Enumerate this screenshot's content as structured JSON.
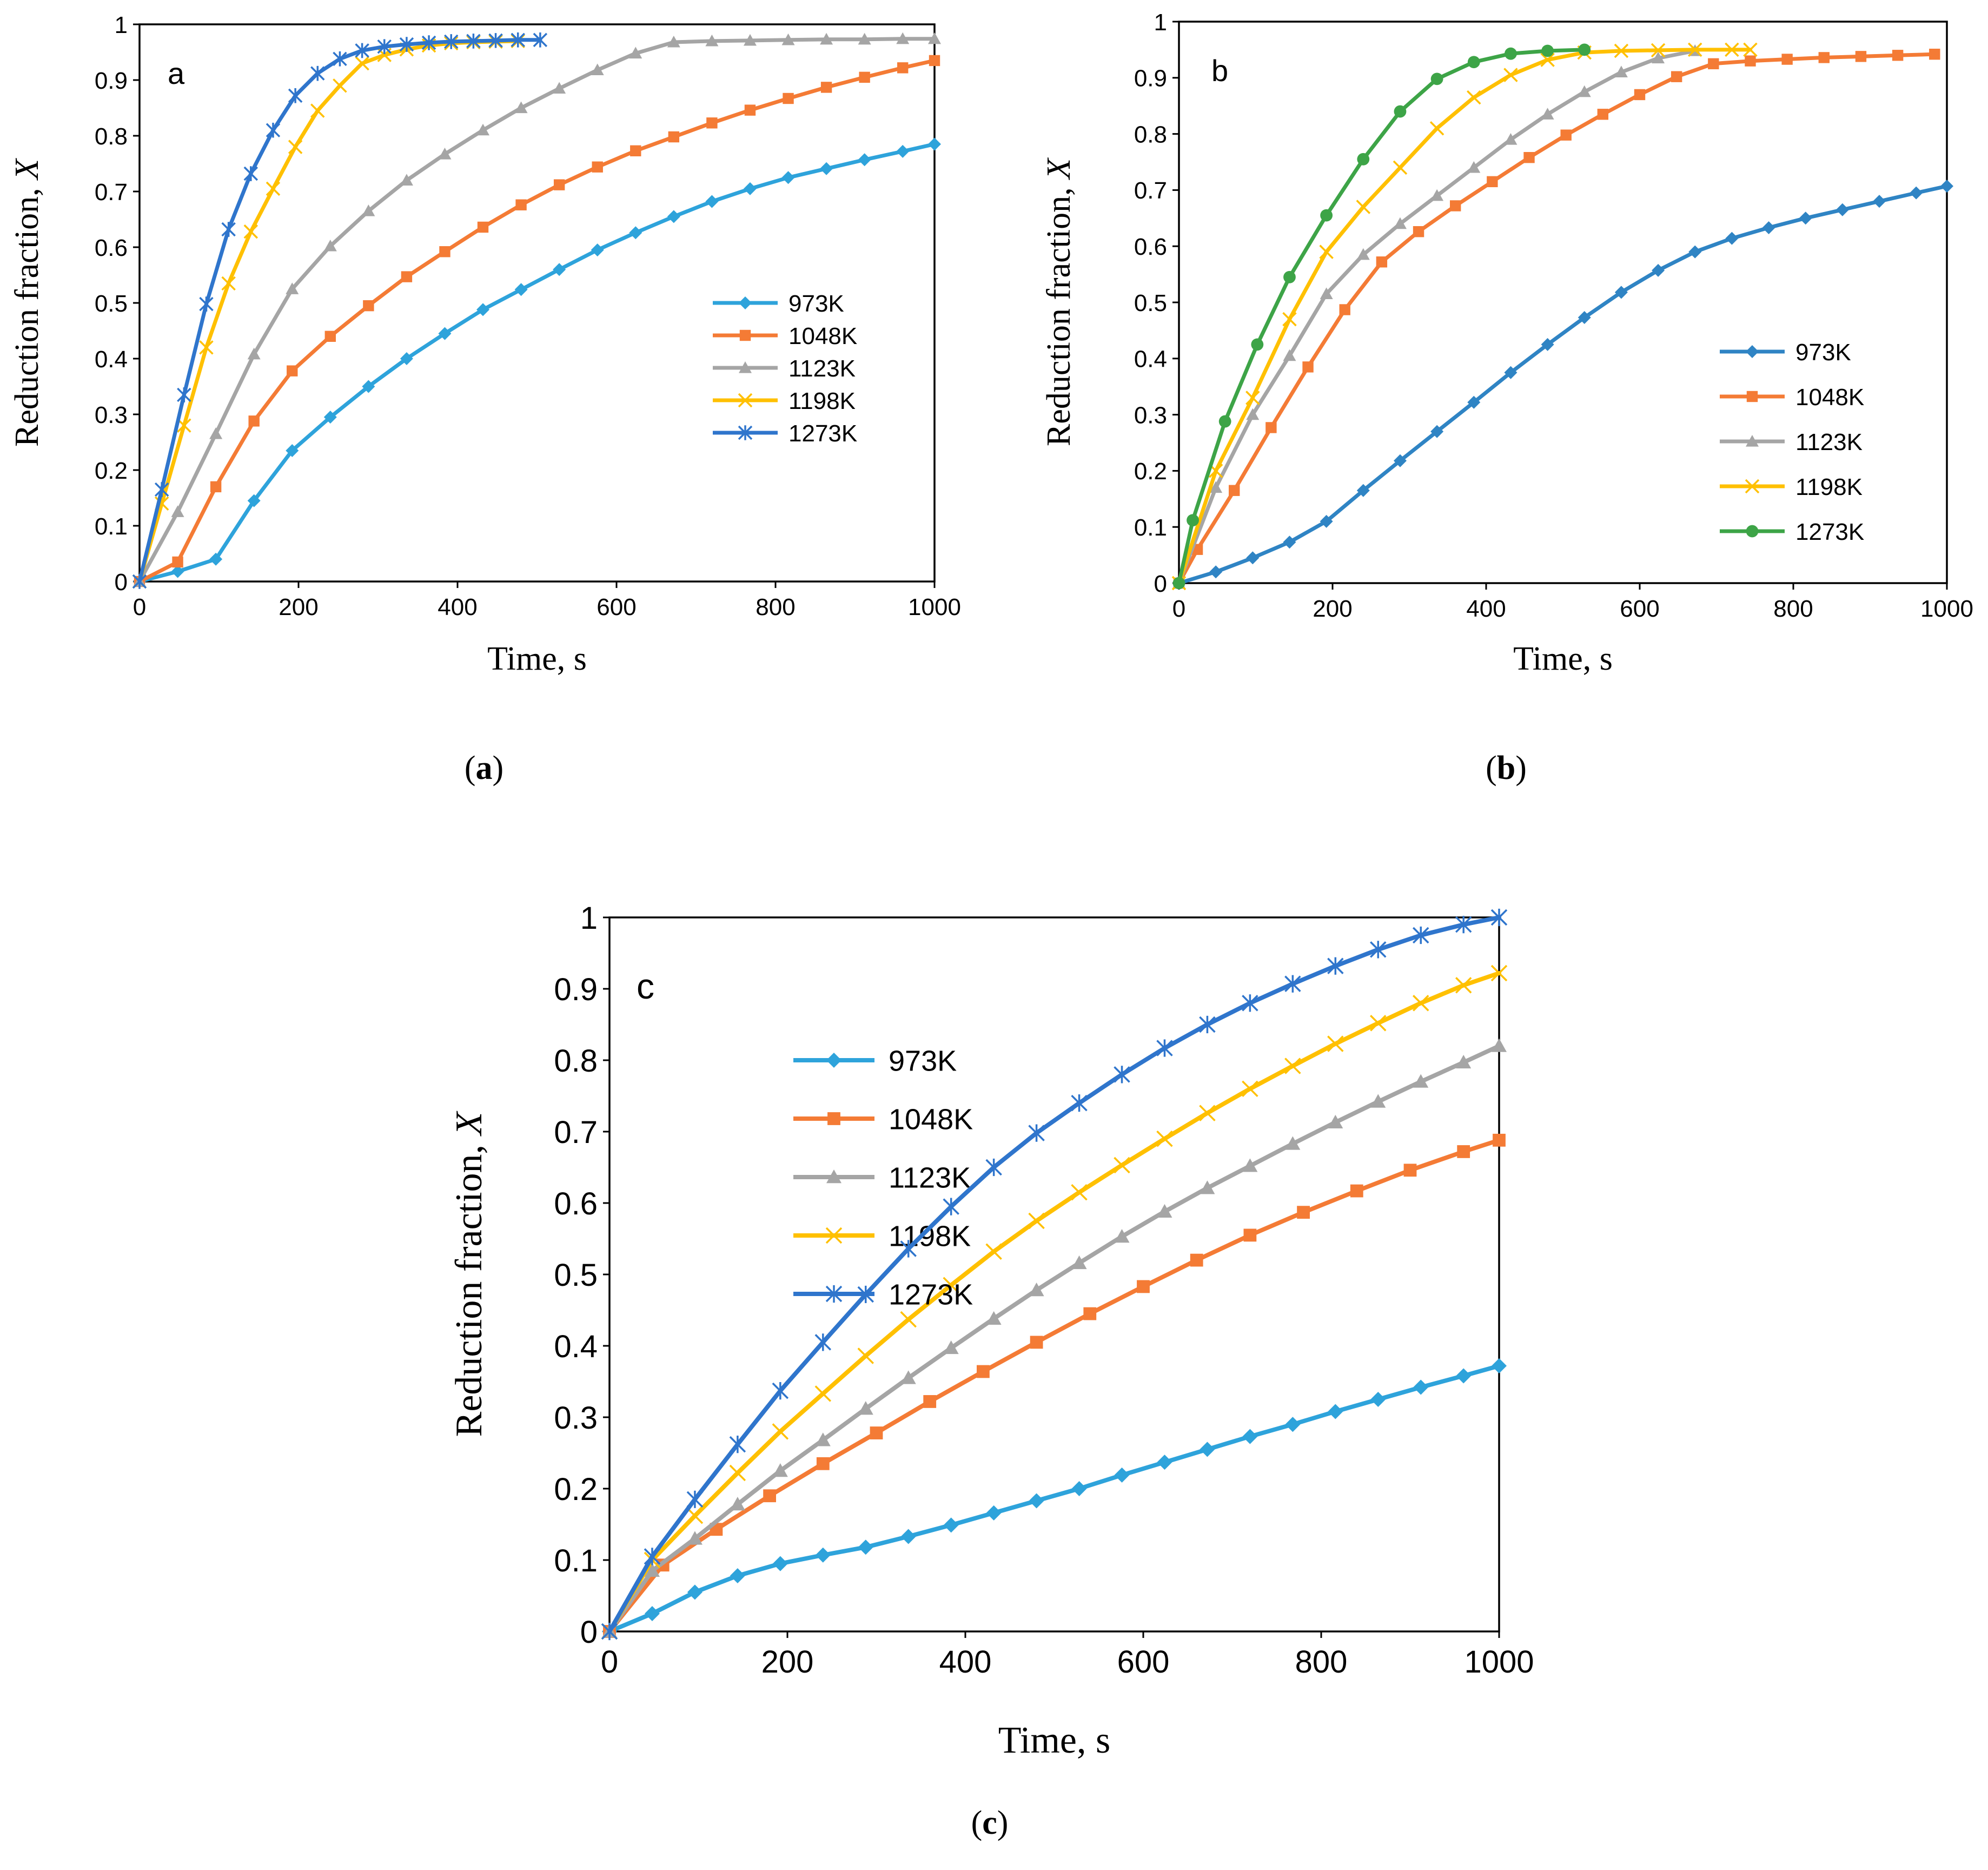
{
  "captions": [
    {
      "open": "(",
      "letter": "a",
      "close": ")"
    },
    {
      "open": "(",
      "letter": "b",
      "close": ")"
    },
    {
      "open": "(",
      "letter": "c",
      "close": ")"
    }
  ],
  "chart_data": [
    {
      "type": "line",
      "panel_label": "a",
      "xlabel": "Time, s",
      "ylabel": "Reduction fraction, X",
      "xlim": [
        0,
        1000
      ],
      "ylim": [
        0,
        1
      ],
      "xticks": [
        0,
        200,
        400,
        600,
        800,
        1000
      ],
      "yticks": [
        0,
        0.1,
        0.2,
        0.3,
        0.4,
        0.5,
        0.6,
        0.7,
        0.8,
        0.9,
        1
      ],
      "grid": false,
      "legend_position": "bottom-right",
      "series": [
        {
          "name": "973K",
          "color": "#2EA3DB",
          "marker": "diamond",
          "x": [
            0,
            48,
            96,
            144,
            192,
            240,
            288,
            336,
            384,
            432,
            480,
            528,
            576,
            624,
            672,
            720,
            768,
            816,
            864,
            912,
            960,
            1000
          ],
          "y": [
            0,
            0.018,
            0.04,
            0.145,
            0.235,
            0.295,
            0.35,
            0.4,
            0.445,
            0.488,
            0.524,
            0.56,
            0.595,
            0.626,
            0.655,
            0.682,
            0.705,
            0.725,
            0.741,
            0.757,
            0.772,
            0.785
          ]
        },
        {
          "name": "1048K",
          "color": "#F47B35",
          "marker": "square",
          "x": [
            0,
            48,
            96,
            144,
            192,
            240,
            288,
            336,
            384,
            432,
            480,
            528,
            576,
            624,
            672,
            720,
            768,
            816,
            864,
            912,
            960,
            1000
          ],
          "y": [
            0,
            0.035,
            0.17,
            0.288,
            0.378,
            0.44,
            0.495,
            0.547,
            0.592,
            0.636,
            0.676,
            0.712,
            0.744,
            0.773,
            0.798,
            0.823,
            0.846,
            0.867,
            0.887,
            0.905,
            0.922,
            0.935
          ]
        },
        {
          "name": "1123K",
          "color": "#A5A5A5",
          "marker": "triangle",
          "x": [
            0,
            48,
            96,
            144,
            192,
            240,
            288,
            336,
            384,
            432,
            480,
            528,
            576,
            624,
            672,
            720,
            768,
            816,
            864,
            912,
            960,
            1000
          ],
          "y": [
            0,
            0.125,
            0.265,
            0.408,
            0.525,
            0.602,
            0.665,
            0.72,
            0.767,
            0.81,
            0.85,
            0.885,
            0.918,
            0.948,
            0.968,
            0.97,
            0.971,
            0.972,
            0.973,
            0.973,
            0.974,
            0.974
          ]
        },
        {
          "name": "1198K",
          "color": "#FFC000",
          "marker": "x",
          "x": [
            0,
            28,
            56,
            84,
            112,
            140,
            168,
            196,
            224,
            252,
            280,
            308,
            336,
            364,
            392,
            420,
            448,
            476
          ],
          "y": [
            0,
            0.14,
            0.28,
            0.42,
            0.535,
            0.628,
            0.705,
            0.78,
            0.845,
            0.89,
            0.93,
            0.945,
            0.955,
            0.962,
            0.966,
            0.968,
            0.969,
            0.97
          ]
        },
        {
          "name": "1273K",
          "color": "#2F75CC",
          "marker": "asterisk",
          "x": [
            0,
            28,
            56,
            84,
            112,
            140,
            168,
            196,
            224,
            252,
            280,
            308,
            336,
            364,
            392,
            420,
            448,
            476,
            504
          ],
          "y": [
            0,
            0.165,
            0.335,
            0.498,
            0.632,
            0.732,
            0.81,
            0.872,
            0.912,
            0.938,
            0.953,
            0.96,
            0.964,
            0.967,
            0.969,
            0.97,
            0.971,
            0.972,
            0.972
          ]
        }
      ]
    },
    {
      "type": "line",
      "panel_label": "b",
      "xlabel": "Time, s",
      "ylabel": "Reduction fraction, X",
      "xlim": [
        0,
        1000
      ],
      "ylim": [
        0,
        1
      ],
      "xticks": [
        0,
        200,
        400,
        600,
        800,
        1000
      ],
      "yticks": [
        0,
        0.1,
        0.2,
        0.3,
        0.4,
        0.5,
        0.6,
        0.7,
        0.8,
        0.9,
        1
      ],
      "grid": false,
      "legend_position": "bottom-right",
      "series": [
        {
          "name": "973K",
          "color": "#2F84C4",
          "marker": "diamond",
          "x": [
            0,
            48,
            96,
            144,
            192,
            240,
            288,
            336,
            384,
            432,
            480,
            528,
            576,
            624,
            672,
            720,
            768,
            816,
            864,
            912,
            960,
            1000
          ],
          "y": [
            0,
            0.02,
            0.045,
            0.073,
            0.11,
            0.165,
            0.218,
            0.27,
            0.322,
            0.375,
            0.425,
            0.473,
            0.518,
            0.557,
            0.59,
            0.614,
            0.633,
            0.65,
            0.665,
            0.68,
            0.695,
            0.707
          ]
        },
        {
          "name": "1048K",
          "color": "#F47B35",
          "marker": "square",
          "x": [
            0,
            24,
            72,
            120,
            168,
            216,
            264,
            312,
            360,
            408,
            456,
            504,
            552,
            600,
            648,
            696,
            744,
            792,
            840,
            888,
            936,
            984
          ],
          "y": [
            0,
            0.06,
            0.165,
            0.277,
            0.385,
            0.487,
            0.572,
            0.626,
            0.672,
            0.715,
            0.758,
            0.798,
            0.835,
            0.87,
            0.902,
            0.925,
            0.93,
            0.933,
            0.936,
            0.938,
            0.94,
            0.942
          ]
        },
        {
          "name": "1123K",
          "color": "#A5A5A5",
          "marker": "triangle",
          "x": [
            0,
            48,
            96,
            144,
            192,
            240,
            288,
            336,
            384,
            432,
            480,
            528,
            576,
            624,
            672
          ],
          "y": [
            0,
            0.17,
            0.3,
            0.405,
            0.515,
            0.585,
            0.64,
            0.69,
            0.74,
            0.79,
            0.835,
            0.875,
            0.91,
            0.935,
            0.948
          ]
        },
        {
          "name": "1198K",
          "color": "#FFC000",
          "marker": "x",
          "x": [
            0,
            48,
            96,
            144,
            192,
            240,
            288,
            336,
            384,
            432,
            480,
            528,
            576,
            624,
            672,
            720,
            744
          ],
          "y": [
            0,
            0.2,
            0.33,
            0.47,
            0.59,
            0.67,
            0.74,
            0.81,
            0.865,
            0.905,
            0.932,
            0.945,
            0.948,
            0.949,
            0.95,
            0.95,
            0.95
          ]
        },
        {
          "name": "1273K",
          "color": "#3DA447",
          "marker": "circle",
          "x": [
            0,
            18,
            60,
            102,
            144,
            192,
            240,
            288,
            336,
            384,
            432,
            480,
            528
          ],
          "y": [
            0,
            0.112,
            0.288,
            0.425,
            0.545,
            0.655,
            0.755,
            0.84,
            0.898,
            0.928,
            0.943,
            0.948,
            0.95
          ]
        }
      ]
    },
    {
      "type": "line",
      "panel_label": "c",
      "xlabel": "Time, s",
      "ylabel": "Reduction fraction, X",
      "xlim": [
        0,
        1000
      ],
      "ylim": [
        0,
        1
      ],
      "xticks": [
        0,
        200,
        400,
        600,
        800,
        1000
      ],
      "yticks": [
        0,
        0.1,
        0.2,
        0.3,
        0.4,
        0.5,
        0.6,
        0.7,
        0.8,
        0.9,
        1
      ],
      "grid": false,
      "legend_position": "top-left",
      "series": [
        {
          "name": "973K",
          "color": "#2EA3DB",
          "marker": "diamond",
          "x": [
            0,
            48,
            96,
            144,
            192,
            240,
            288,
            336,
            384,
            432,
            480,
            528,
            576,
            624,
            672,
            720,
            768,
            816,
            864,
            912,
            960,
            1000
          ],
          "y": [
            0,
            0.025,
            0.055,
            0.078,
            0.095,
            0.107,
            0.118,
            0.133,
            0.149,
            0.166,
            0.183,
            0.2,
            0.219,
            0.237,
            0.255,
            0.273,
            0.29,
            0.308,
            0.325,
            0.342,
            0.358,
            0.372
          ]
        },
        {
          "name": "1048K",
          "color": "#F47B35",
          "marker": "square",
          "x": [
            0,
            60,
            120,
            180,
            240,
            300,
            360,
            420,
            480,
            540,
            600,
            660,
            720,
            780,
            840,
            900,
            960,
            1000
          ],
          "y": [
            0,
            0.093,
            0.143,
            0.19,
            0.235,
            0.278,
            0.322,
            0.364,
            0.405,
            0.445,
            0.483,
            0.52,
            0.555,
            0.587,
            0.617,
            0.646,
            0.672,
            0.688
          ]
        },
        {
          "name": "1123K",
          "color": "#A5A5A5",
          "marker": "triangle",
          "x": [
            0,
            48,
            96,
            144,
            192,
            240,
            288,
            336,
            384,
            432,
            480,
            528,
            576,
            624,
            672,
            720,
            768,
            816,
            864,
            912,
            960,
            1000
          ],
          "y": [
            0,
            0.085,
            0.13,
            0.178,
            0.225,
            0.268,
            0.312,
            0.355,
            0.397,
            0.438,
            0.478,
            0.516,
            0.553,
            0.588,
            0.621,
            0.652,
            0.683,
            0.713,
            0.742,
            0.77,
            0.797,
            0.82
          ]
        },
        {
          "name": "1198K",
          "color": "#FFC000",
          "marker": "x",
          "x": [
            0,
            48,
            96,
            144,
            192,
            240,
            288,
            336,
            384,
            432,
            480,
            528,
            576,
            624,
            672,
            720,
            768,
            816,
            864,
            912,
            960,
            1000
          ],
          "y": [
            0,
            0.1,
            0.162,
            0.222,
            0.28,
            0.333,
            0.386,
            0.437,
            0.485,
            0.532,
            0.575,
            0.615,
            0.653,
            0.69,
            0.726,
            0.76,
            0.792,
            0.823,
            0.852,
            0.88,
            0.905,
            0.922
          ]
        },
        {
          "name": "1273K",
          "color": "#2F75CC",
          "marker": "asterisk",
          "x": [
            0,
            48,
            96,
            144,
            192,
            240,
            288,
            336,
            384,
            432,
            480,
            528,
            576,
            624,
            672,
            720,
            768,
            816,
            864,
            912,
            960,
            1000
          ],
          "y": [
            0,
            0.105,
            0.185,
            0.262,
            0.337,
            0.405,
            0.472,
            0.536,
            0.595,
            0.65,
            0.698,
            0.74,
            0.78,
            0.817,
            0.85,
            0.88,
            0.907,
            0.932,
            0.955,
            0.975,
            0.99,
            1.0
          ]
        }
      ]
    }
  ]
}
